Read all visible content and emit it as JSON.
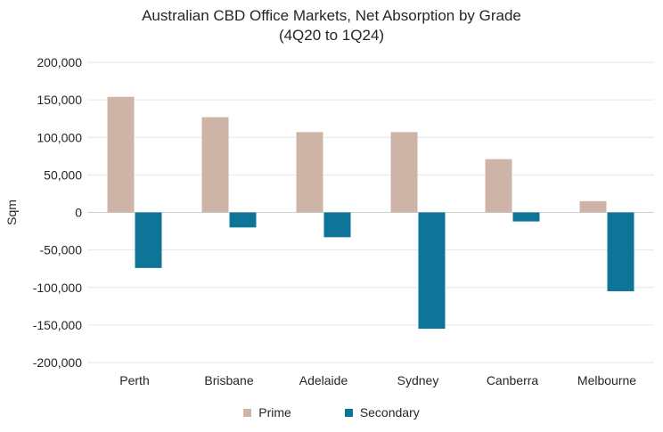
{
  "chart_data": {
    "type": "bar",
    "title": "Australian CBD Office Markets, Net Absorption by Grade",
    "subtitle": "(4Q20 to 1Q24)",
    "xlabel": "",
    "ylabel": "Sqm",
    "ylim": [
      -200000,
      200000
    ],
    "yticks": [
      200000,
      150000,
      100000,
      50000,
      0,
      -50000,
      -100000,
      -150000,
      -200000
    ],
    "ytick_labels": [
      "200,000",
      "150,000",
      "100,000",
      "50,000",
      "0",
      "-50,000",
      "-100,000",
      "-150,000",
      "-200,000"
    ],
    "categories": [
      "Perth",
      "Brisbane",
      "Adelaide",
      "Sydney",
      "Canberra",
      "Melbourne"
    ],
    "series": [
      {
        "name": "Prime",
        "color": "#cdb4a6",
        "values": [
          154000,
          127000,
          107000,
          107000,
          71000,
          15000
        ]
      },
      {
        "name": "Secondary",
        "color": "#0e7599",
        "values": [
          -74000,
          -20000,
          -33000,
          -155000,
          -12000,
          -105000
        ]
      }
    ],
    "grid": true,
    "legend_position": "bottom"
  }
}
